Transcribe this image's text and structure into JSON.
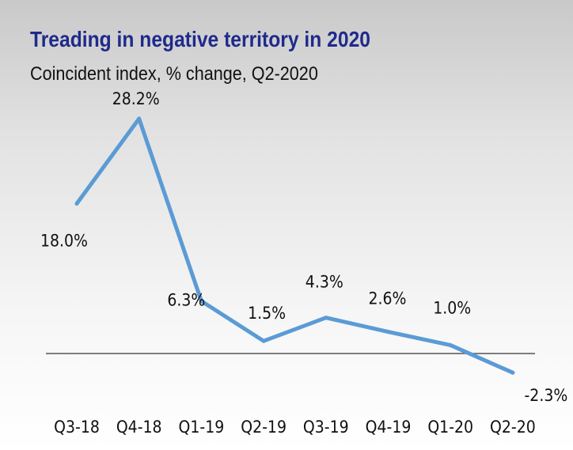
{
  "chart_data": {
    "type": "line",
    "title": "Treading in negative territory in 2020",
    "subtitle": "Coincident index, % change, Q2-2020",
    "categories": [
      "Q3-18",
      "Q4-18",
      "Q1-19",
      "Q2-19",
      "Q3-19",
      "Q4-19",
      "Q1-20",
      "Q2-20"
    ],
    "values": [
      18.0,
      28.2,
      6.3,
      1.5,
      4.3,
      2.6,
      1.0,
      -2.3
    ],
    "data_labels": [
      "18.0%",
      "28.2%",
      "6.3%",
      "1.5%",
      "4.3%",
      "2.6%",
      "1.0%",
      "-2.3%"
    ],
    "line_color": "#5b9bd5",
    "zero_line": true,
    "grid": false,
    "legend": "none"
  },
  "colors": {
    "title": "#1f2a8c",
    "text": "#111111",
    "axis": "#555555"
  }
}
